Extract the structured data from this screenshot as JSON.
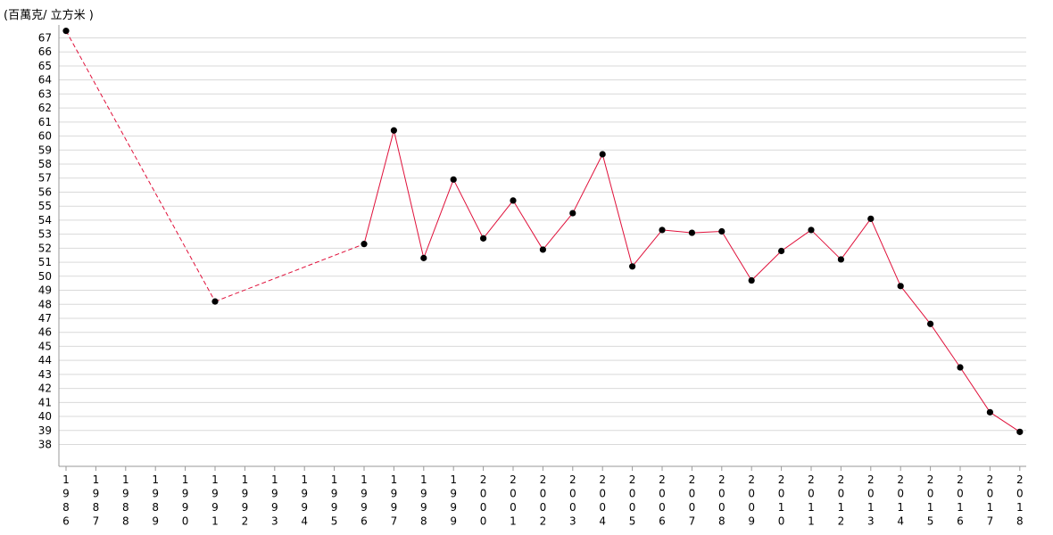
{
  "chart_data": {
    "type": "line",
    "unit_label": "(百萬克/ 立方米 )",
    "x": [
      "1986",
      "1987",
      "1988",
      "1989",
      "1990",
      "1991",
      "1992",
      "1993",
      "1994",
      "1995",
      "1996",
      "1997",
      "1998",
      "1999",
      "2000",
      "2001",
      "2002",
      "2003",
      "2004",
      "2005",
      "2006",
      "2007",
      "2008",
      "2009",
      "2010",
      "2011",
      "2012",
      "2013",
      "2014",
      "2015",
      "2016",
      "2017",
      "2018"
    ],
    "y_ticks": [
      38,
      39,
      40,
      41,
      42,
      43,
      44,
      45,
      46,
      47,
      48,
      49,
      50,
      51,
      52,
      53,
      54,
      55,
      56,
      57,
      58,
      59,
      60,
      61,
      62,
      63,
      64,
      65,
      66,
      67
    ],
    "ylim": [
      37,
      68
    ],
    "grid": true,
    "series": [
      {
        "color": "#e0103a",
        "marker_color": "#000000",
        "points": [
          {
            "x": "1986",
            "y": 67.5
          },
          {
            "x": "1991",
            "y": 48.2
          },
          {
            "x": "1996",
            "y": 52.3
          },
          {
            "x": "1997",
            "y": 60.4
          },
          {
            "x": "1998",
            "y": 51.3
          },
          {
            "x": "1999",
            "y": 56.9
          },
          {
            "x": "2000",
            "y": 52.7
          },
          {
            "x": "2001",
            "y": 55.4
          },
          {
            "x": "2002",
            "y": 51.9
          },
          {
            "x": "2003",
            "y": 54.5
          },
          {
            "x": "2004",
            "y": 58.7
          },
          {
            "x": "2005",
            "y": 50.7
          },
          {
            "x": "2006",
            "y": 53.3
          },
          {
            "x": "2007",
            "y": 53.1
          },
          {
            "x": "2008",
            "y": 53.2
          },
          {
            "x": "2009",
            "y": 49.7
          },
          {
            "x": "2010",
            "y": 51.8
          },
          {
            "x": "2011",
            "y": 53.3
          },
          {
            "x": "2012",
            "y": 51.2
          },
          {
            "x": "2013",
            "y": 54.1
          },
          {
            "x": "2014",
            "y": 49.3
          },
          {
            "x": "2015",
            "y": 46.6
          },
          {
            "x": "2016",
            "y": 43.5
          },
          {
            "x": "2017",
            "y": 40.3
          },
          {
            "x": "2018",
            "y": 38.9
          }
        ],
        "dashed_until": "1996"
      }
    ]
  }
}
